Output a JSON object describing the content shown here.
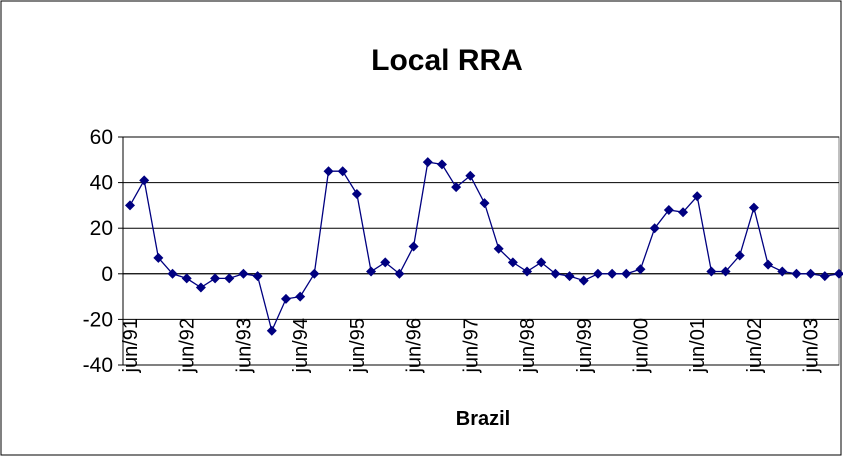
{
  "chart_data": {
    "type": "line",
    "title": "Local RRA",
    "x_label": "Brazil",
    "categories": [
      "jun/91",
      null,
      null,
      null,
      "jun/92",
      null,
      null,
      null,
      "jun/93",
      null,
      null,
      null,
      "jun/94",
      null,
      null,
      null,
      "jun/95",
      null,
      null,
      null,
      "jun/96",
      null,
      null,
      null,
      "jun/97",
      null,
      null,
      null,
      "jun/98",
      null,
      null,
      null,
      "jun/99",
      null,
      null,
      null,
      "jun/00",
      null,
      null,
      null,
      "jun/01",
      null,
      null,
      null,
      "jun/02",
      null,
      null,
      null,
      "jun/03",
      null,
      null
    ],
    "series": [
      {
        "name": "Brazil",
        "color": "#000080",
        "values": [
          30,
          41,
          7,
          0,
          -2,
          -6,
          -2,
          -2,
          0,
          -1,
          -25,
          -11,
          -10,
          0,
          45,
          45,
          35,
          1,
          5,
          0,
          12,
          49,
          48,
          38,
          43,
          31,
          11,
          5,
          1,
          5,
          0,
          -1,
          -3,
          0,
          0,
          0,
          2,
          20,
          28,
          27,
          34,
          1,
          1,
          8,
          29,
          4,
          1,
          0,
          0,
          -1,
          0
        ]
      }
    ],
    "ylim": [
      -40,
      60
    ],
    "yticks": [
      -40,
      -20,
      0,
      20,
      40,
      60
    ],
    "grid": true
  }
}
